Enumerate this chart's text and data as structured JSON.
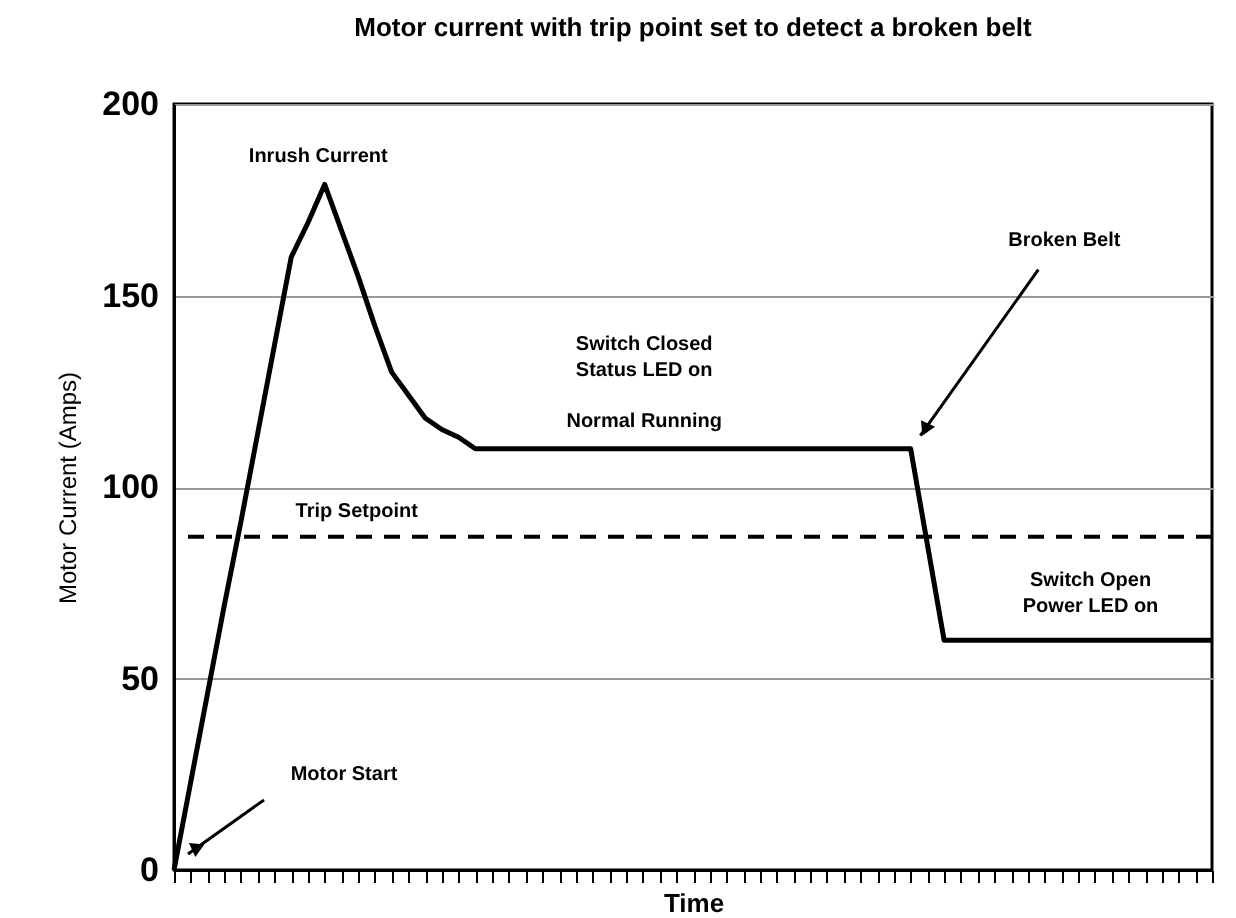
{
  "chart_data": {
    "type": "line",
    "title": "Motor current with trip point set to detect a broken belt",
    "xlabel": "Time",
    "ylabel": "Motor Current (Amps)",
    "categories": [
      null,
      null,
      null,
      null,
      null,
      null,
      null,
      null,
      null,
      null,
      null,
      null,
      null,
      null,
      null,
      null,
      null,
      null,
      null,
      null,
      null,
      null,
      null,
      null,
      null,
      null,
      null,
      null,
      null,
      null,
      null,
      null,
      null,
      null,
      null,
      null,
      null,
      null,
      null,
      null,
      null,
      null,
      null,
      null,
      null,
      null,
      null,
      null,
      null,
      null,
      null,
      null,
      null,
      null,
      null,
      null,
      null,
      null,
      null,
      null,
      null,
      null,
      null
    ],
    "series": [
      {
        "color": "#000000",
        "values": [
          0,
          23,
          46,
          69,
          91,
          114,
          137,
          160,
          169,
          179,
          167,
          155,
          142,
          130,
          124,
          118,
          115,
          113,
          110,
          110,
          110,
          110,
          110,
          110,
          110,
          110,
          110,
          110,
          110,
          110,
          110,
          110,
          110,
          110,
          110,
          110,
          110,
          110,
          110,
          110,
          110,
          110,
          110,
          110,
          110,
          85,
          60,
          60,
          60,
          60,
          60,
          60,
          60,
          60,
          60,
          60,
          60,
          60,
          60,
          60,
          60,
          60,
          60
        ]
      }
    ],
    "ylim": [
      0,
      200
    ],
    "yticks": [
      0,
      50,
      100,
      150,
      200
    ],
    "tick_labels": "y",
    "grid": "y",
    "marker": "none",
    "line_style": "solid",
    "ref_lines": [
      {
        "axis": "y",
        "value": 87,
        "label": "Trip Setpoint",
        "line_style": "dashed",
        "color": "#000000"
      }
    ],
    "annotations": [
      {
        "text": "Inrush Current",
        "y": 179
      },
      "Switch Closed\nStatus LED on",
      {
        "text": "Normal Running",
        "y": 110
      },
      "Broken Belt",
      {
        "text": "Switch Open\nPower LED on",
        "y": 60
      },
      "Motor Start"
    ]
  }
}
